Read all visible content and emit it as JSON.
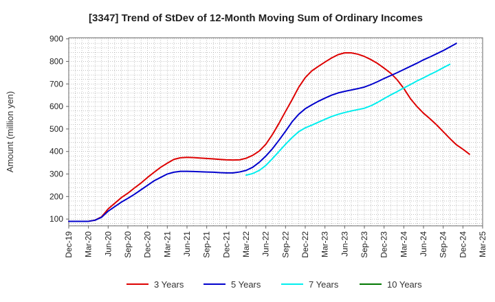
{
  "chart_data": {
    "type": "line",
    "title": "[3347]  Trend of StDev of 12-Month Moving Sum of Ordinary Incomes",
    "xlabel": "",
    "ylabel": "Amount (million yen)",
    "ylim": [
      70,
      905
    ],
    "yticks": [
      100,
      200,
      300,
      400,
      500,
      600,
      700,
      800,
      900
    ],
    "grid": true,
    "legend_position": "bottom",
    "x_tick_labels": [
      "Dec-19",
      "Mar-20",
      "Jun-20",
      "Sep-20",
      "Dec-20",
      "Mar-21",
      "Jun-21",
      "Sep-21",
      "Dec-21",
      "Mar-22",
      "Jun-22",
      "Sep-22",
      "Dec-22",
      "Mar-23",
      "Jun-23",
      "Sep-23",
      "Dec-23",
      "Mar-24",
      "Jun-24",
      "Sep-24",
      "Dec-24",
      "Mar-25"
    ],
    "x_months_start": "Dec-19",
    "series": [
      {
        "name": "3 Years",
        "color": "#dd0000",
        "start_index": 0,
        "values": [
          90,
          90,
          90,
          90,
          95,
          110,
          145,
          170,
          195,
          215,
          238,
          260,
          285,
          308,
          330,
          348,
          365,
          372,
          374,
          373,
          371,
          369,
          367,
          365,
          363,
          362,
          363,
          370,
          383,
          402,
          432,
          475,
          525,
          578,
          630,
          685,
          728,
          758,
          778,
          797,
          815,
          830,
          838,
          838,
          832,
          822,
          808,
          791,
          770,
          748,
          718,
          680,
          635,
          600,
          570,
          545,
          518,
          488,
          458,
          430,
          410,
          388
        ]
      },
      {
        "name": "5 Years",
        "color": "#0000cc",
        "start_index": 0,
        "values": [
          90,
          90,
          90,
          90,
          95,
          108,
          135,
          155,
          175,
          192,
          210,
          230,
          250,
          270,
          285,
          300,
          308,
          312,
          312,
          311,
          310,
          309,
          308,
          306,
          305,
          305,
          309,
          316,
          330,
          352,
          380,
          412,
          450,
          490,
          532,
          565,
          590,
          607,
          623,
          637,
          650,
          660,
          667,
          673,
          679,
          686,
          697,
          710,
          724,
          737,
          750,
          764,
          778,
          792,
          807,
          820,
          834,
          848,
          864,
          880
        ]
      },
      {
        "name": "7 Years",
        "color": "#00eeee",
        "start_index": 27,
        "values": [
          295,
          302,
          316,
          338,
          368,
          400,
          432,
          462,
          488,
          505,
          517,
          530,
          543,
          555,
          565,
          573,
          580,
          586,
          592,
          603,
          618,
          635,
          651,
          666,
          682,
          697,
          713,
          727,
          742,
          756,
          772,
          787
        ]
      },
      {
        "name": "10 Years",
        "color": "#007700",
        "start_index": 0,
        "values": []
      }
    ]
  }
}
